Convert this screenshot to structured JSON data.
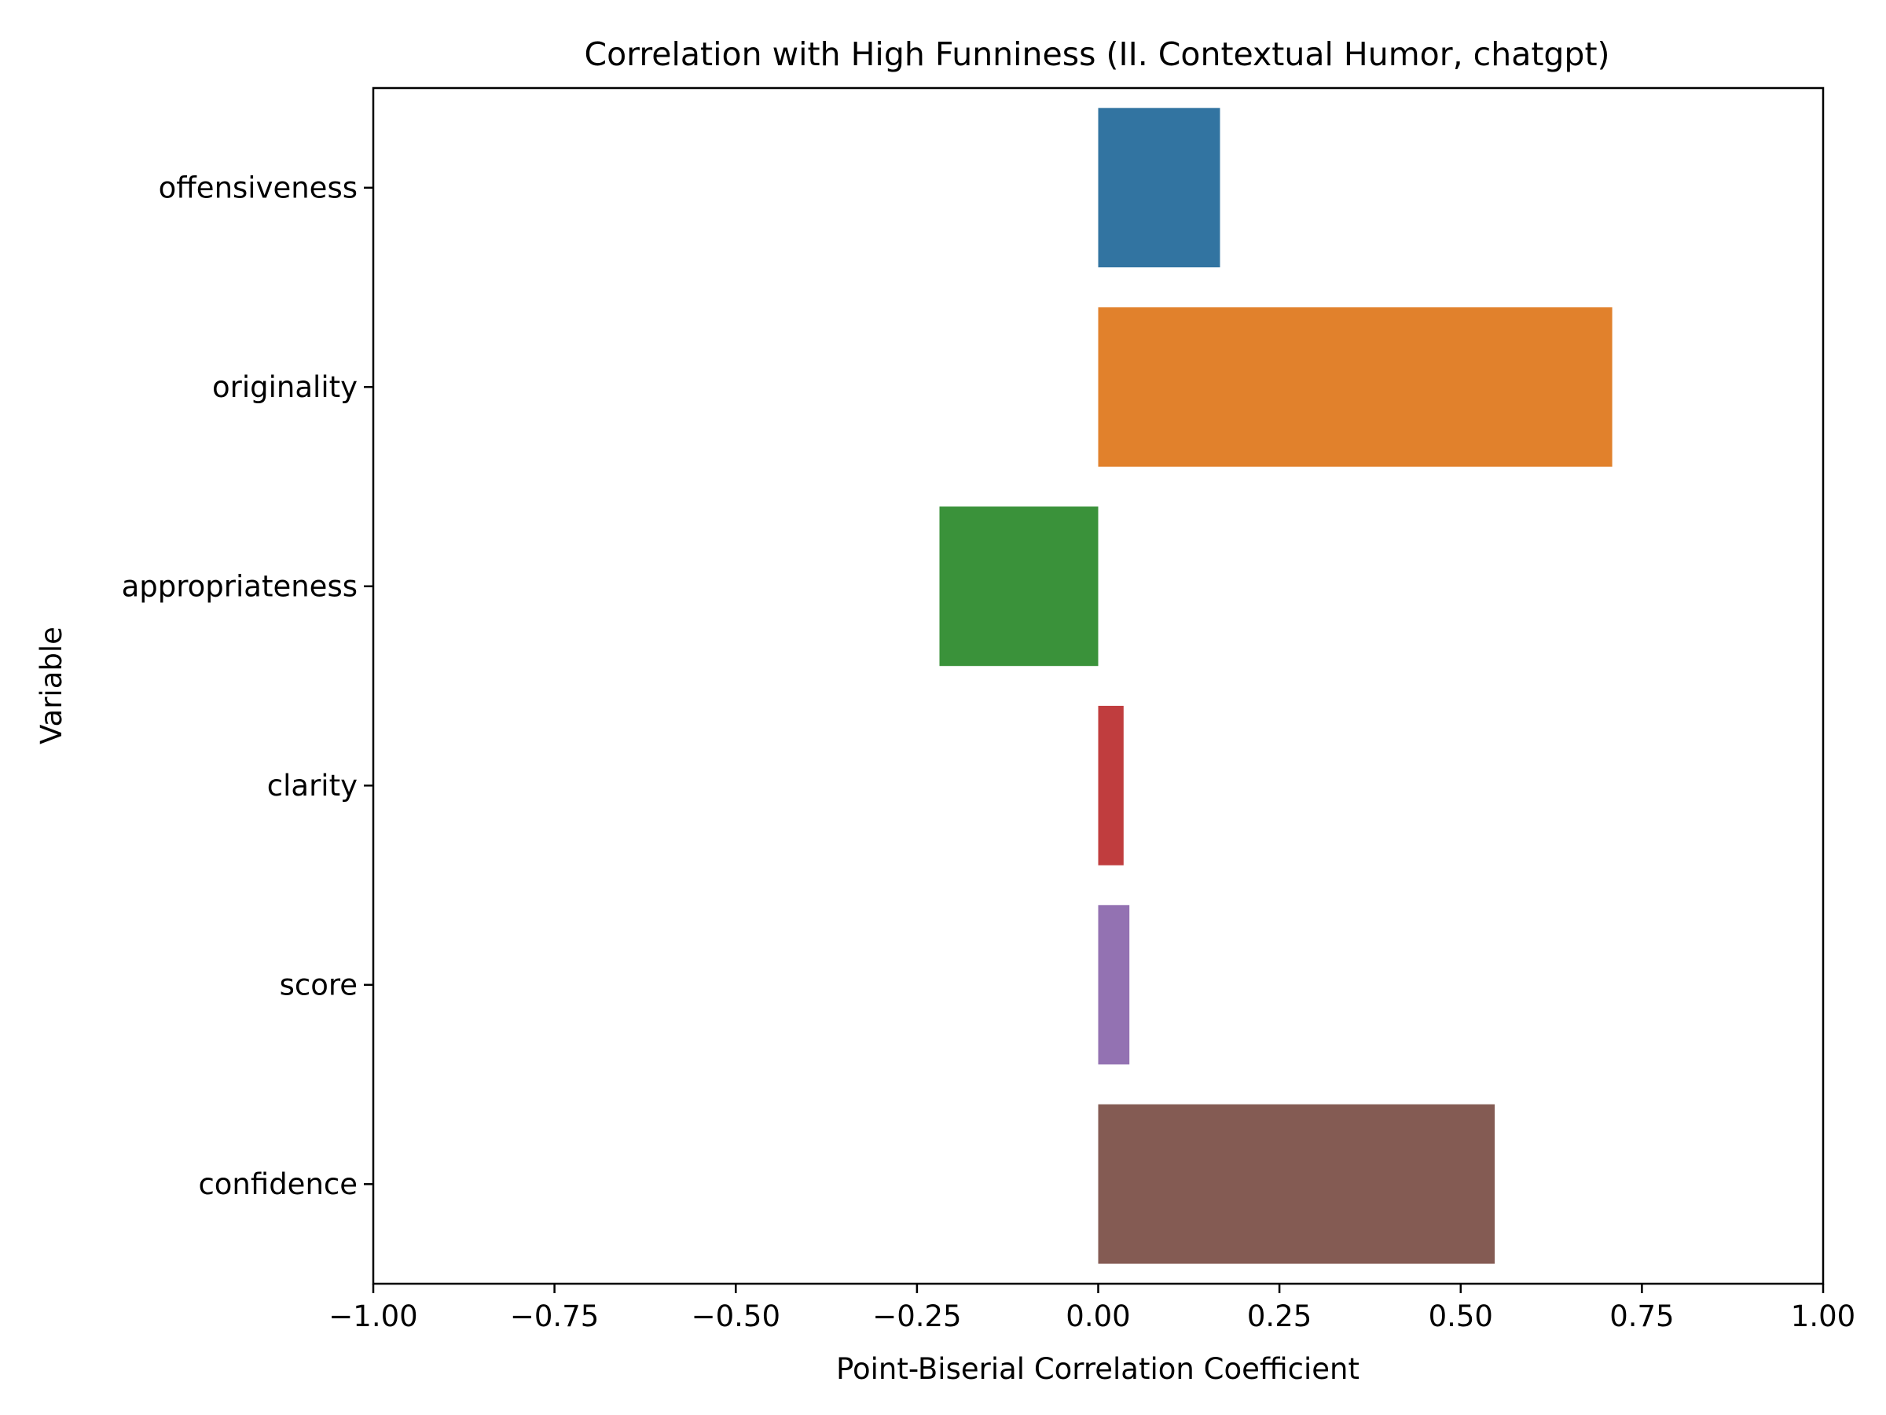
{
  "chart_data": {
    "type": "bar",
    "orientation": "horizontal",
    "title": "Correlation with High Funniness (II. Contextual Humor, chatgpt)",
    "xlabel": "Point-Biserial Correlation Coefficient",
    "ylabel": "Variable",
    "xlim": [
      -1.0,
      1.0
    ],
    "xticks": [
      -1.0,
      -0.75,
      -0.5,
      -0.25,
      0.0,
      0.25,
      0.5,
      0.75,
      1.0
    ],
    "xtick_labels": [
      "−1.00",
      "−0.75",
      "−0.50",
      "−0.25",
      "0.00",
      "0.25",
      "0.50",
      "0.75",
      "1.00"
    ],
    "categories": [
      "offensiveness",
      "originality",
      "appropriateness",
      "clarity",
      "score",
      "confidence"
    ],
    "values": [
      0.168,
      0.709,
      -0.219,
      0.035,
      0.043,
      0.547
    ],
    "colors": [
      "#3274a1",
      "#e1812c",
      "#3a923a",
      "#c03d3e",
      "#9372b2",
      "#845b53"
    ],
    "grid": false,
    "legend": "none"
  }
}
